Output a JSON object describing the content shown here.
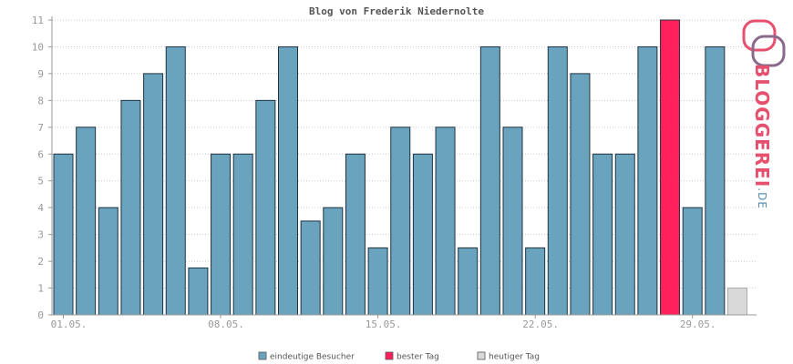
{
  "chart_data": {
    "type": "bar",
    "title": "Blog von Frederik Niedernolte",
    "ylim": [
      0,
      11
    ],
    "yticks": [
      0,
      1,
      2,
      3,
      4,
      5,
      6,
      7,
      8,
      9,
      10,
      11
    ],
    "grid": true,
    "x_tick_labels": [
      {
        "index": 0,
        "label": "01.05."
      },
      {
        "index": 7,
        "label": "08.05."
      },
      {
        "index": 14,
        "label": "15.05."
      },
      {
        "index": 21,
        "label": "22.05."
      },
      {
        "index": 28,
        "label": "29.05."
      }
    ],
    "values": [
      6,
      7,
      4,
      8,
      9,
      10,
      1.75,
      6,
      6,
      8,
      10,
      3.5,
      4,
      6,
      2.5,
      7,
      6,
      7,
      2.5,
      10,
      7,
      2.5,
      10,
      9,
      6,
      6,
      10,
      11,
      4,
      10,
      1
    ],
    "best_index": 27,
    "today_index": 30,
    "colors": {
      "visitors": "#6aa3bd",
      "best": "#ff1f5a",
      "today": "#d9d9d9"
    },
    "legend": [
      {
        "key": "visitors",
        "label": "eindeutige Besucher"
      },
      {
        "key": "best",
        "label": "bester Tag"
      },
      {
        "key": "today",
        "label": "heutiger Tag"
      }
    ],
    "legend_position": "bottom"
  },
  "brand": {
    "name": "BLOGGEREI",
    "suffix": ".DE"
  }
}
